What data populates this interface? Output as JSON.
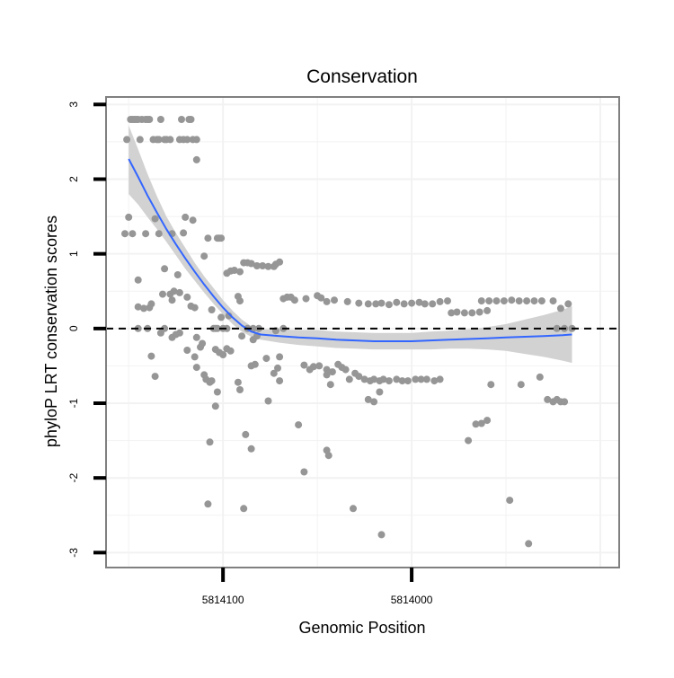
{
  "chart_data": {
    "type": "scatter",
    "title": "Conservation",
    "xlabel": "Genomic Position",
    "ylabel": "phyloP LRT conservation scores",
    "x_reversed": true,
    "xlim": [
      5814162,
      5813890
    ],
    "ylim": [
      -3.2,
      3.1
    ],
    "x_ticks": [
      5814100,
      5814000
    ],
    "x_tick_labels": [
      "5814100",
      "5814000"
    ],
    "y_ticks": [
      3,
      2,
      1,
      0,
      -1,
      -2,
      -3
    ],
    "y_tick_labels": [
      "3",
      "2",
      "1",
      "0",
      "-1",
      "-2",
      "-3"
    ],
    "reference_line": {
      "y": 0,
      "style": "dashed"
    },
    "grid": true,
    "colors": {
      "points": "#969696",
      "smooth": "#3366ff",
      "ribbon": "#d2d2d2",
      "panel_border": "#808080",
      "grid": "#f2f2f2"
    },
    "series": [
      {
        "name": "phyloP scores",
        "points": [
          [
            5814149,
            2.8
          ],
          [
            5814148,
            2.8
          ],
          [
            5814147,
            2.8
          ],
          [
            5814146,
            2.8
          ],
          [
            5814145,
            2.8
          ],
          [
            5814143,
            2.8
          ],
          [
            5814141,
            2.8
          ],
          [
            5814140,
            2.8
          ],
          [
            5814139,
            2.8
          ],
          [
            5814133,
            2.8
          ],
          [
            5814122,
            2.8
          ],
          [
            5814118,
            2.8
          ],
          [
            5814117,
            2.8
          ],
          [
            5814151,
            2.53
          ],
          [
            5814144,
            2.53
          ],
          [
            5814137,
            2.53
          ],
          [
            5814135,
            2.53
          ],
          [
            5814134,
            2.53
          ],
          [
            5814131,
            2.53
          ],
          [
            5814130,
            2.53
          ],
          [
            5814128,
            2.53
          ],
          [
            5814123,
            2.53
          ],
          [
            5814121,
            2.53
          ],
          [
            5814119,
            2.53
          ],
          [
            5814116,
            2.53
          ],
          [
            5814114,
            2.53
          ],
          [
            5814114,
            2.26
          ],
          [
            5814150,
            1.49
          ],
          [
            5814136,
            1.47
          ],
          [
            5814120,
            1.49
          ],
          [
            5814116,
            1.45
          ],
          [
            5814152,
            1.27
          ],
          [
            5814148,
            1.27
          ],
          [
            5814141,
            1.27
          ],
          [
            5814134,
            1.27
          ],
          [
            5814127,
            1.27
          ],
          [
            5814121,
            1.28
          ],
          [
            5814108,
            1.21
          ],
          [
            5814103,
            1.21
          ],
          [
            5814102,
            1.21
          ],
          [
            5814101,
            1.21
          ],
          [
            5814110,
            0.97
          ],
          [
            5814131,
            0.8
          ],
          [
            5814124,
            0.72
          ],
          [
            5814145,
            0.65
          ],
          [
            5814098,
            0.74
          ],
          [
            5814096,
            0.77
          ],
          [
            5814094,
            0.78
          ],
          [
            5814091,
            0.76
          ],
          [
            5814089,
            0.88
          ],
          [
            5814087,
            0.88
          ],
          [
            5814085,
            0.87
          ],
          [
            5814082,
            0.84
          ],
          [
            5814079,
            0.84
          ],
          [
            5814076,
            0.83
          ],
          [
            5814073,
            0.83
          ],
          [
            5814072,
            0.86
          ],
          [
            5814070,
            0.89
          ],
          [
            5814126,
            0.5
          ],
          [
            5814123,
            0.48
          ],
          [
            5814128,
            0.46
          ],
          [
            5814132,
            0.46
          ],
          [
            5814119,
            0.42
          ],
          [
            5814127,
            0.38
          ],
          [
            5814138,
            0.33
          ],
          [
            5814092,
            0.43
          ],
          [
            5814091,
            0.37
          ],
          [
            5814068,
            0.4
          ],
          [
            5814066,
            0.42
          ],
          [
            5814064,
            0.42
          ],
          [
            5814062,
            0.38
          ],
          [
            5814056,
            0.4
          ],
          [
            5814050,
            0.44
          ],
          [
            5814048,
            0.41
          ],
          [
            5814045,
            0.36
          ],
          [
            5814041,
            0.38
          ],
          [
            5814034,
            0.36
          ],
          [
            5814028,
            0.34
          ],
          [
            5814023,
            0.33
          ],
          [
            5814019,
            0.33
          ],
          [
            5814016,
            0.34
          ],
          [
            5814012,
            0.32
          ],
          [
            5814008,
            0.35
          ],
          [
            5814004,
            0.33
          ],
          [
            5814000,
            0.34
          ],
          [
            5813996,
            0.35
          ],
          [
            5813993,
            0.33
          ],
          [
            5813989,
            0.33
          ],
          [
            5813985,
            0.36
          ],
          [
            5813981,
            0.37
          ],
          [
            5813979,
            0.21
          ],
          [
            5813976,
            0.22
          ],
          [
            5813972,
            0.21
          ],
          [
            5813968,
            0.21
          ],
          [
            5813964,
            0.22
          ],
          [
            5813960,
            0.24
          ],
          [
            5813963,
            0.37
          ],
          [
            5813959,
            0.37
          ],
          [
            5813955,
            0.37
          ],
          [
            5813951,
            0.37
          ],
          [
            5813947,
            0.38
          ],
          [
            5813943,
            0.37
          ],
          [
            5813939,
            0.37
          ],
          [
            5813935,
            0.37
          ],
          [
            5813931,
            0.37
          ],
          [
            5813925,
            0.37
          ],
          [
            5814142,
            0.27
          ],
          [
            5814139,
            0.28
          ],
          [
            5814145,
            0.29
          ],
          [
            5814117,
            0.3
          ],
          [
            5814115,
            0.28
          ],
          [
            5814106,
            0.25
          ],
          [
            5814101,
            0.15
          ],
          [
            5814097,
            0.17
          ],
          [
            5813921,
            0.27
          ],
          [
            5813917,
            0.33
          ],
          [
            5814145,
            0
          ],
          [
            5814140,
            0
          ],
          [
            5814131,
            0
          ],
          [
            5814105,
            0
          ],
          [
            5814104,
            0
          ],
          [
            5814103,
            0
          ],
          [
            5814100,
            0
          ],
          [
            5814098,
            0
          ],
          [
            5814087,
            0
          ],
          [
            5814084,
            0
          ],
          [
            5814081,
            0
          ],
          [
            5814068,
            0
          ],
          [
            5813923,
            0
          ],
          [
            5813919,
            0
          ],
          [
            5813915,
            0
          ],
          [
            5814133,
            -0.06
          ],
          [
            5814125,
            -0.08
          ],
          [
            5814123,
            -0.06
          ],
          [
            5814114,
            -0.12
          ],
          [
            5814111,
            -0.2
          ],
          [
            5814090,
            -0.1
          ],
          [
            5814084,
            -0.15
          ],
          [
            5814082,
            -0.1
          ],
          [
            5814072,
            -0.03
          ],
          [
            5814115,
            -0.38
          ],
          [
            5814114,
            -0.52
          ],
          [
            5814112,
            -0.25
          ],
          [
            5814110,
            -0.62
          ],
          [
            5814104,
            -0.28
          ],
          [
            5814102,
            -0.32
          ],
          [
            5814100,
            -0.35
          ],
          [
            5814098,
            -0.27
          ],
          [
            5814096,
            -0.3
          ],
          [
            5814138,
            -0.37
          ],
          [
            5814119,
            -0.29
          ],
          [
            5814127,
            -0.12
          ],
          [
            5814136,
            -0.64
          ],
          [
            5814109,
            -0.68
          ],
          [
            5814107,
            -0.72
          ],
          [
            5814106,
            -0.7
          ],
          [
            5814092,
            -0.72
          ],
          [
            5814091,
            -0.82
          ],
          [
            5814085,
            -0.5
          ],
          [
            5814083,
            -0.48
          ],
          [
            5814073,
            -0.6
          ],
          [
            5814070,
            -0.7
          ],
          [
            5814107,
            -1.52
          ],
          [
            5814104,
            -1.04
          ],
          [
            5814103,
            -0.85
          ],
          [
            5814077,
            -0.4
          ],
          [
            5814076,
            -0.97
          ],
          [
            5814071,
            -0.53
          ],
          [
            5814070,
            -0.38
          ],
          [
            5814057,
            -0.49
          ],
          [
            5814054,
            -0.55
          ],
          [
            5814052,
            -0.51
          ],
          [
            5814049,
            -0.5
          ],
          [
            5814045,
            -0.55
          ],
          [
            5814042,
            -0.58
          ],
          [
            5814039,
            -0.48
          ],
          [
            5814037,
            -0.52
          ],
          [
            5814035,
            -0.55
          ],
          [
            5814033,
            -0.68
          ],
          [
            5814030,
            -0.6
          ],
          [
            5814028,
            -0.64
          ],
          [
            5814025,
            -0.68
          ],
          [
            5814022,
            -0.7
          ],
          [
            5814020,
            -0.68
          ],
          [
            5814017,
            -0.7
          ],
          [
            5814015,
            -0.68
          ],
          [
            5814012,
            -0.7
          ],
          [
            5814008,
            -0.68
          ],
          [
            5814005,
            -0.7
          ],
          [
            5814002,
            -0.7
          ],
          [
            5813998,
            -0.68
          ],
          [
            5813995,
            -0.68
          ],
          [
            5813992,
            -0.68
          ],
          [
            5813988,
            -0.7
          ],
          [
            5813985,
            -0.68
          ],
          [
            5814045,
            -0.62
          ],
          [
            5814043,
            -0.75
          ],
          [
            5814023,
            -0.95
          ],
          [
            5814020,
            -0.98
          ],
          [
            5814017,
            -0.85
          ],
          [
            5813958,
            -0.75
          ],
          [
            5813942,
            -0.75
          ],
          [
            5813928,
            -0.95
          ],
          [
            5813925,
            -0.98
          ],
          [
            5813923,
            -0.95
          ],
          [
            5813921,
            -0.98
          ],
          [
            5813919,
            -0.98
          ],
          [
            5813932,
            -0.65
          ],
          [
            5814060,
            -1.29
          ],
          [
            5814045,
            -1.63
          ],
          [
            5814044,
            -1.7
          ],
          [
            5814057,
            -1.92
          ],
          [
            5814088,
            -1.42
          ],
          [
            5814085,
            -1.61
          ],
          [
            5814089,
            -2.41
          ],
          [
            5814031,
            -2.41
          ],
          [
            5814016,
            -2.76
          ],
          [
            5813970,
            -1.5
          ],
          [
            5813966,
            -1.28
          ],
          [
            5813963,
            -1.27
          ],
          [
            5813960,
            -1.23
          ],
          [
            5813948,
            -2.3
          ],
          [
            5813938,
            -2.88
          ],
          [
            5814108,
            -2.35
          ]
        ]
      },
      {
        "name": "loess fit",
        "points": [
          [
            5814150,
            2.27
          ],
          [
            5814145,
            2.03
          ],
          [
            5814140,
            1.78
          ],
          [
            5814135,
            1.55
          ],
          [
            5814130,
            1.33
          ],
          [
            5814125,
            1.13
          ],
          [
            5814120,
            0.94
          ],
          [
            5814115,
            0.76
          ],
          [
            5814110,
            0.59
          ],
          [
            5814105,
            0.43
          ],
          [
            5814100,
            0.28
          ],
          [
            5814095,
            0.15
          ],
          [
            5814090,
            0.04
          ],
          [
            5814085,
            -0.04
          ],
          [
            5814080,
            -0.08
          ],
          [
            5814070,
            -0.1
          ],
          [
            5814060,
            -0.12
          ],
          [
            5814050,
            -0.13
          ],
          [
            5814040,
            -0.15
          ],
          [
            5814030,
            -0.16
          ],
          [
            5814020,
            -0.17
          ],
          [
            5814010,
            -0.17
          ],
          [
            5814000,
            -0.17
          ],
          [
            5813990,
            -0.16
          ],
          [
            5813980,
            -0.15
          ],
          [
            5813970,
            -0.14
          ],
          [
            5813960,
            -0.13
          ],
          [
            5813950,
            -0.12
          ],
          [
            5813940,
            -0.11
          ],
          [
            5813930,
            -0.1
          ],
          [
            5813920,
            -0.09
          ],
          [
            5813915,
            -0.08
          ]
        ]
      }
    ],
    "confidence_band": {
      "x": [
        5814150,
        5814145,
        5814140,
        5814135,
        5814130,
        5814125,
        5814120,
        5814115,
        5814110,
        5814105,
        5814100,
        5814095,
        5814090,
        5814085,
        5814080,
        5814070,
        5814060,
        5814050,
        5814040,
        5814030,
        5814020,
        5814010,
        5814000,
        5813990,
        5813980,
        5813970,
        5813960,
        5813950,
        5813940,
        5813930,
        5813920,
        5813915
      ],
      "lower": [
        1.8,
        1.66,
        1.49,
        1.33,
        1.16,
        0.98,
        0.8,
        0.64,
        0.48,
        0.33,
        0.19,
        0.06,
        -0.04,
        -0.11,
        -0.15,
        -0.19,
        -0.22,
        -0.24,
        -0.26,
        -0.27,
        -0.28,
        -0.28,
        -0.28,
        -0.28,
        -0.27,
        -0.27,
        -0.28,
        -0.3,
        -0.34,
        -0.38,
        -0.43,
        -0.46
      ],
      "upper": [
        2.72,
        2.4,
        2.07,
        1.77,
        1.5,
        1.28,
        1.08,
        0.88,
        0.7,
        0.54,
        0.38,
        0.24,
        0.12,
        0.03,
        -0.01,
        -0.01,
        -0.02,
        -0.02,
        -0.04,
        -0.05,
        -0.06,
        -0.06,
        -0.06,
        -0.04,
        -0.03,
        -0.01,
        0.02,
        0.06,
        0.12,
        0.18,
        0.25,
        0.3
      ]
    }
  }
}
